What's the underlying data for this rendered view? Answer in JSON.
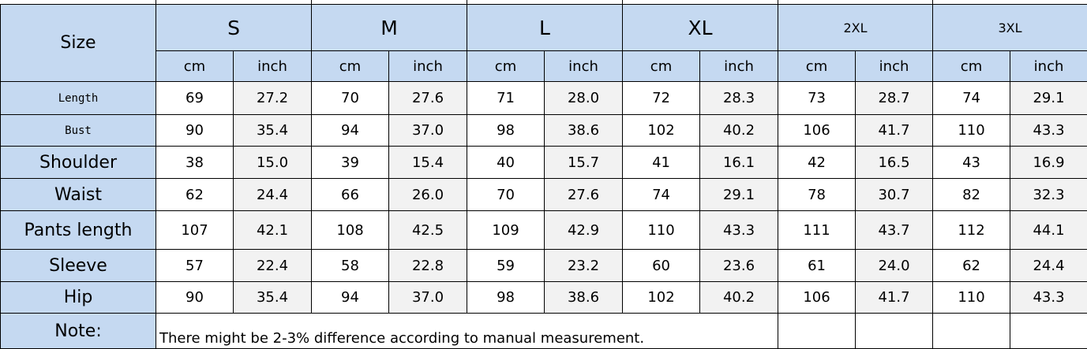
{
  "table": {
    "corner": "Size",
    "sizes": [
      "S",
      "M",
      "L",
      "XL",
      "2XL",
      "3XL"
    ],
    "units": [
      "cm",
      "inch"
    ],
    "rows": [
      {
        "label": "Length",
        "cells": [
          "69",
          "27.2",
          "70",
          "27.6",
          "71",
          "28.0",
          "72",
          "28.3",
          "73",
          "28.7",
          "74",
          "29.1"
        ]
      },
      {
        "label": "Bust",
        "cells": [
          "90",
          "35.4",
          "94",
          "37.0",
          "98",
          "38.6",
          "102",
          "40.2",
          "106",
          "41.7",
          "110",
          "43.3"
        ]
      },
      {
        "label": "Shoulder",
        "cells": [
          "38",
          "15.0",
          "39",
          "15.4",
          "40",
          "15.7",
          "41",
          "16.1",
          "42",
          "16.5",
          "43",
          "16.9"
        ]
      },
      {
        "label": "Waist",
        "cells": [
          "62",
          "24.4",
          "66",
          "26.0",
          "70",
          "27.6",
          "74",
          "29.1",
          "78",
          "30.7",
          "82",
          "32.3"
        ]
      },
      {
        "label": "Pants length",
        "cells": [
          "107",
          "42.1",
          "108",
          "42.5",
          "109",
          "42.9",
          "110",
          "43.3",
          "111",
          "43.7",
          "112",
          "44.1"
        ]
      },
      {
        "label": "Sleeve",
        "cells": [
          "57",
          "22.4",
          "58",
          "22.8",
          "59",
          "23.2",
          "60",
          "23.6",
          "61",
          "24.0",
          "62",
          "24.4"
        ]
      },
      {
        "label": "Hip",
        "cells": [
          "90",
          "35.4",
          "94",
          "37.0",
          "98",
          "38.6",
          "102",
          "40.2",
          "106",
          "41.7",
          "110",
          "43.3"
        ]
      }
    ],
    "note": {
      "label": "Note:",
      "text": "There might be 2-3% difference according to manual measurement."
    }
  }
}
